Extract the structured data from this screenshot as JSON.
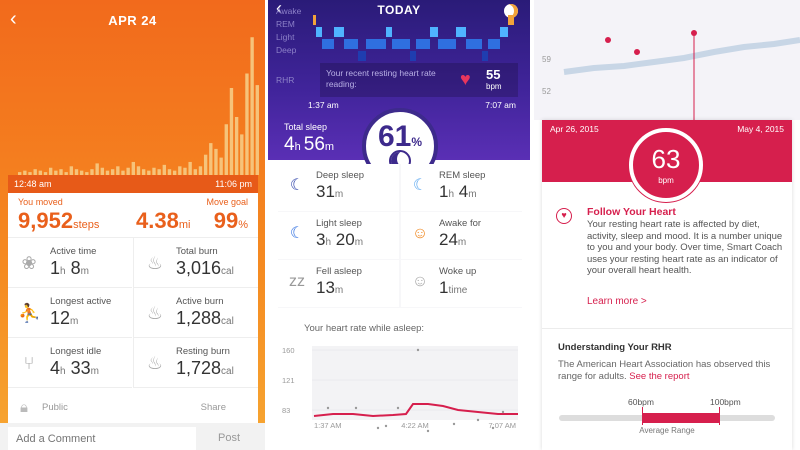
{
  "activity": {
    "date": "APR 24",
    "start_time": "12:48 am",
    "end_time": "11:06 pm",
    "you_moved_label": "You moved",
    "steps": "9,952",
    "steps_unit": "steps",
    "distance": "4.38",
    "distance_unit": "mi",
    "move_goal_label": "Move goal",
    "move_goal": "99",
    "move_goal_unit": "%",
    "stats": [
      {
        "label": "Active time",
        "value": "1",
        "unit1": "h",
        "value2": "8",
        "unit2": "m",
        "icon": "pinwheel-icon"
      },
      {
        "label": "Total burn",
        "value": "3,016",
        "unit1": "cal",
        "icon": "flames-icon"
      },
      {
        "label": "Longest active",
        "value": "12",
        "unit1": "m",
        "icon": "runner-icon"
      },
      {
        "label": "Active burn",
        "value": "1,288",
        "unit1": "cal",
        "icon": "flame-icon"
      },
      {
        "label": "Longest idle",
        "value": "4",
        "unit1": "h",
        "value2": "33",
        "unit2": "m",
        "icon": "chair-icon"
      },
      {
        "label": "Resting burn",
        "value": "1,728",
        "unit1": "cal",
        "icon": "flame-outline-icon"
      }
    ],
    "privacy": "Public",
    "share": "Share",
    "comment_placeholder": "Add a Comment",
    "post": "Post"
  },
  "sleep": {
    "title": "TODAY",
    "stages": [
      "Awake",
      "REM",
      "Light",
      "Deep"
    ],
    "rhr_label": "RHR",
    "rhr_text": "Your recent resting heart rate reading:",
    "rhr_value": "55",
    "rhr_unit": "bpm",
    "start_time": "1:37 am",
    "end_time": "7:07 am",
    "total_sleep_label": "Total sleep",
    "total_h": "4",
    "total_m": "56",
    "score": "61",
    "score_unit": "%",
    "cells": [
      {
        "label": "Deep sleep",
        "v1": "31",
        "u1": "m",
        "icon": "moon-dark-icon"
      },
      {
        "label": "REM sleep",
        "v1": "1",
        "u1": "h",
        "v2": "4",
        "u2": "m",
        "icon": "moon-light-icon"
      },
      {
        "label": "Light sleep",
        "v1": "3",
        "u1": "h",
        "v2": "20",
        "u2": "m",
        "icon": "moon-blue-icon"
      },
      {
        "label": "Awake for",
        "v1": "24",
        "u1": "m",
        "icon": "sun-face-icon"
      },
      {
        "label": "Fell asleep",
        "v1": "13",
        "u1": "m",
        "icon": "zzz-icon"
      },
      {
        "label": "Woke up",
        "v1": "1",
        "u1": "time",
        "icon": "face-icon"
      }
    ],
    "hr_title": "Your heart rate while asleep:",
    "hr_chart": {
      "y_ticks": [
        "160",
        "121",
        "83"
      ],
      "x_ticks": [
        "1:37 AM",
        "4:22 AM",
        "7:07 AM"
      ]
    }
  },
  "heart": {
    "y_ticks": [
      "59",
      "52"
    ],
    "date_start": "Apr 26, 2015",
    "date_end": "May 4, 2015",
    "rhr": "63",
    "rhr_unit": "bpm",
    "title": "Follow Your Heart",
    "body": "Your resting heart rate is affected by diet, activity, sleep and mood. It is a number unique to you and your body. Over time, Smart Coach uses your resting heart rate as an indicator of your overall heart health.",
    "learn_more": "Learn more >",
    "understanding_title": "Understanding Your RHR",
    "understanding_body": "The American Heart Association has observed this range for adults.",
    "see_report": "See the report",
    "range_low": "60bpm",
    "range_high": "100bpm",
    "range_caption": "Average Range"
  },
  "colors": {
    "activity_orange": "#f26a1c",
    "sleep_purple": "#40249a",
    "heart_red": "#d61f4d"
  }
}
